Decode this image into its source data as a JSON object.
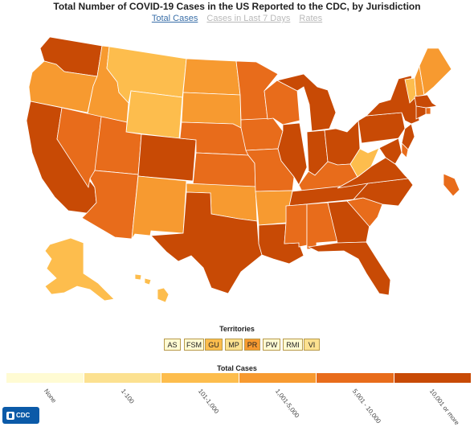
{
  "title": "Total Number of COVID-19 Cases in the US Reported to the CDC, by Jurisdiction",
  "tabs": [
    {
      "label": "Total Cases",
      "active": true
    },
    {
      "label": "Cases in Last 7 Days",
      "active": false
    },
    {
      "label": "Rates",
      "active": false
    }
  ],
  "colors": {
    "none": "#fffbd3",
    "1-100": "#fce190",
    "101-1,000": "#fdbd4d",
    "1,001-5,000": "#f79a30",
    "5,001 - 10,000": "#e86c1b",
    "10,001 or more": "#c84a05"
  },
  "territories_title": "Territories",
  "territories": [
    {
      "label": "AS",
      "category": "None"
    },
    {
      "label": "FSM",
      "category": "None"
    },
    {
      "label": "GU",
      "category": "101-1,000"
    },
    {
      "label": "MP",
      "category": "1-100"
    },
    {
      "label": "PR",
      "category": "1,001-5,000"
    },
    {
      "label": "PW",
      "category": "None"
    },
    {
      "label": "RMI",
      "category": "None"
    },
    {
      "label": "VI",
      "category": "1-100"
    }
  ],
  "legend_title": "Total Cases",
  "legend": [
    {
      "label": "None",
      "color": "#fffbd3"
    },
    {
      "label": "1-100",
      "color": "#fce190"
    },
    {
      "label": "101-1,000",
      "color": "#fdbd4d"
    },
    {
      "label": "1,001-5,000",
      "color": "#f79a30"
    },
    {
      "label": "5,001 - 10,000",
      "color": "#e86c1b"
    },
    {
      "label": "10,001 or more",
      "color": "#c84a05"
    }
  ],
  "states": [
    {
      "id": "WA",
      "category": "10,001 or more"
    },
    {
      "id": "OR",
      "category": "1,001-5,000"
    },
    {
      "id": "CA",
      "category": "10,001 or more"
    },
    {
      "id": "ID",
      "category": "1,001-5,000"
    },
    {
      "id": "NV",
      "category": "5,001 - 10,000"
    },
    {
      "id": "MT",
      "category": "101-1,000"
    },
    {
      "id": "WY",
      "category": "101-1,000"
    },
    {
      "id": "UT",
      "category": "5,001 - 10,000"
    },
    {
      "id": "AZ",
      "category": "5,001 - 10,000"
    },
    {
      "id": "CO",
      "category": "10,001 or more"
    },
    {
      "id": "NM",
      "category": "1,001-5,000"
    },
    {
      "id": "ND",
      "category": "1,001-5,000"
    },
    {
      "id": "SD",
      "category": "1,001-5,000"
    },
    {
      "id": "NE",
      "category": "5,001 - 10,000"
    },
    {
      "id": "KS",
      "category": "5,001 - 10,000"
    },
    {
      "id": "OK",
      "category": "1,001-5,000"
    },
    {
      "id": "TX",
      "category": "10,001 or more"
    },
    {
      "id": "MN",
      "category": "5,001 - 10,000"
    },
    {
      "id": "IA",
      "category": "5,001 - 10,000"
    },
    {
      "id": "MO",
      "category": "5,001 - 10,000"
    },
    {
      "id": "AR",
      "category": "1,001-5,000"
    },
    {
      "id": "LA",
      "category": "10,001 or more"
    },
    {
      "id": "WI",
      "category": "5,001 - 10,000"
    },
    {
      "id": "IL",
      "category": "10,001 or more"
    },
    {
      "id": "MI",
      "category": "10,001 or more"
    },
    {
      "id": "IN",
      "category": "10,001 or more"
    },
    {
      "id": "OH",
      "category": "10,001 or more"
    },
    {
      "id": "KY",
      "category": "5,001 - 10,000"
    },
    {
      "id": "TN",
      "category": "10,001 or more"
    },
    {
      "id": "MS",
      "category": "5,001 - 10,000"
    },
    {
      "id": "AL",
      "category": "5,001 - 10,000"
    },
    {
      "id": "GA",
      "category": "10,001 or more"
    },
    {
      "id": "FL",
      "category": "10,001 or more"
    },
    {
      "id": "SC",
      "category": "5,001 - 10,000"
    },
    {
      "id": "NC",
      "category": "10,001 or more"
    },
    {
      "id": "VA",
      "category": "10,001 or more"
    },
    {
      "id": "WV",
      "category": "101-1,000"
    },
    {
      "id": "PA",
      "category": "10,001 or more"
    },
    {
      "id": "NY",
      "category": "10,001 or more"
    },
    {
      "id": "VT",
      "category": "101-1,000"
    },
    {
      "id": "NH",
      "category": "1,001-5,000"
    },
    {
      "id": "ME",
      "category": "1,001-5,000"
    },
    {
      "id": "MA",
      "category": "10,001 or more"
    },
    {
      "id": "RI",
      "category": "5,001 - 10,000"
    },
    {
      "id": "CT",
      "category": "10,001 or more"
    },
    {
      "id": "NJ",
      "category": "10,001 or more"
    },
    {
      "id": "DE",
      "category": "5,001 - 10,000"
    },
    {
      "id": "MD",
      "category": "10,001 or more"
    },
    {
      "id": "DC",
      "category": "5,001 - 10,000"
    },
    {
      "id": "AK",
      "category": "101-1,000"
    },
    {
      "id": "HI",
      "category": "101-1,000"
    }
  ]
}
